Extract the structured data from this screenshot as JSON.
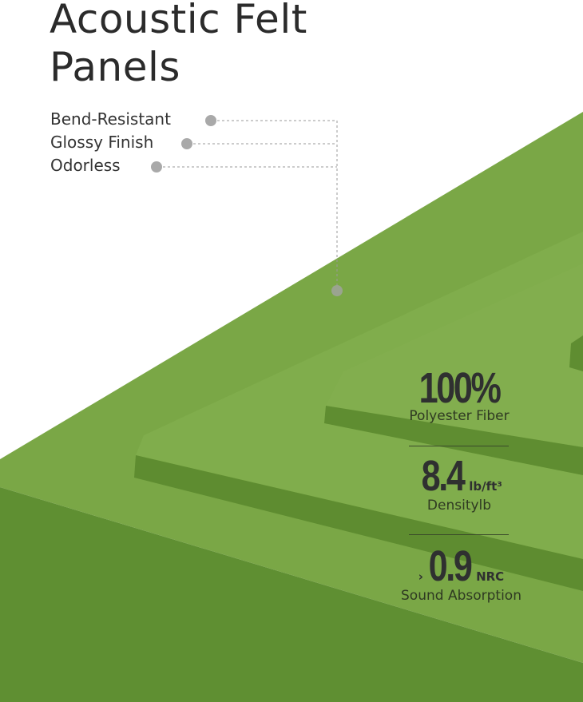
{
  "title_line1": "Acoustic Felt",
  "title_line2": "Panels",
  "features": [
    "Bend-Resistant",
    "Glossy Finish",
    "Odorless"
  ],
  "stats": [
    {
      "value": "100%",
      "unit": "",
      "label": "Polyester Fiber"
    },
    {
      "value": "8.4",
      "unit": "lb/ft³",
      "label": "Densitylb"
    },
    {
      "prefix": "›",
      "value": "0.9",
      "unit": "NRC",
      "label": "Sound Absorption"
    }
  ],
  "colors": {
    "felt_top": "#79a645",
    "felt_edge": "#5f8e31",
    "text": "#2f3030"
  }
}
